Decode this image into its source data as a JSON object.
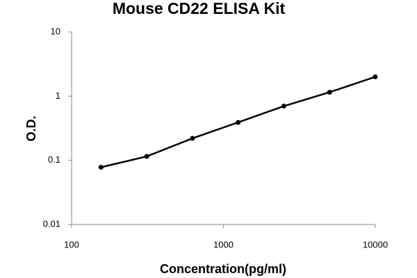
{
  "chart_data": {
    "type": "line",
    "title": "Mouse CD22 ELISA Kit",
    "x_label": "Concentration(pg/ml)",
    "y_label": "O.D.",
    "x_log": true,
    "y_log": true,
    "xlim": [
      100,
      10000
    ],
    "xticks": [
      100,
      1000,
      10000
    ],
    "ylim": [
      0.01,
      10
    ],
    "yticks": [
      0.01,
      0.1,
      1,
      10
    ],
    "series": [
      {
        "color": "#000000",
        "x": [
          156.25,
          312.5,
          625,
          1250,
          2500,
          5000,
          10000
        ],
        "values": [
          0.078,
          0.115,
          0.22,
          0.39,
          0.7,
          1.15,
          2.0
        ]
      }
    ]
  }
}
